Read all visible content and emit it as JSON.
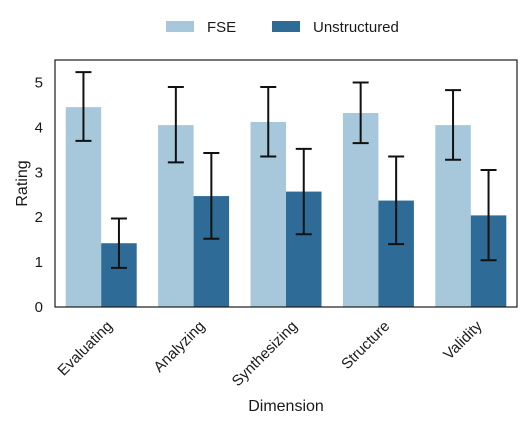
{
  "chart_data": {
    "type": "bar",
    "xlabel": "Dimension",
    "ylabel": "Rating",
    "ylim": [
      0,
      5.5
    ],
    "yticks": [
      0,
      1,
      2,
      3,
      4,
      5
    ],
    "categories": [
      "Evaluating",
      "Analyzing",
      "Synthesizing",
      "Structure",
      "Validity"
    ],
    "series": [
      {
        "name": "FSE",
        "color": "#a6c8da",
        "values": [
          4.45,
          4.05,
          4.12,
          4.32,
          4.05
        ],
        "error_low": [
          3.7,
          3.22,
          3.35,
          3.65,
          3.28
        ],
        "error_high": [
          5.23,
          4.9,
          4.9,
          5.0,
          4.83
        ]
      },
      {
        "name": "Unstructured",
        "color": "#2e6b97",
        "values": [
          1.42,
          2.47,
          2.57,
          2.37,
          2.04
        ],
        "error_low": [
          0.87,
          1.52,
          1.62,
          1.4,
          1.04
        ],
        "error_high": [
          1.97,
          3.43,
          3.52,
          3.35,
          3.05
        ]
      }
    ],
    "legend_position": "top-center",
    "grid": false
  }
}
